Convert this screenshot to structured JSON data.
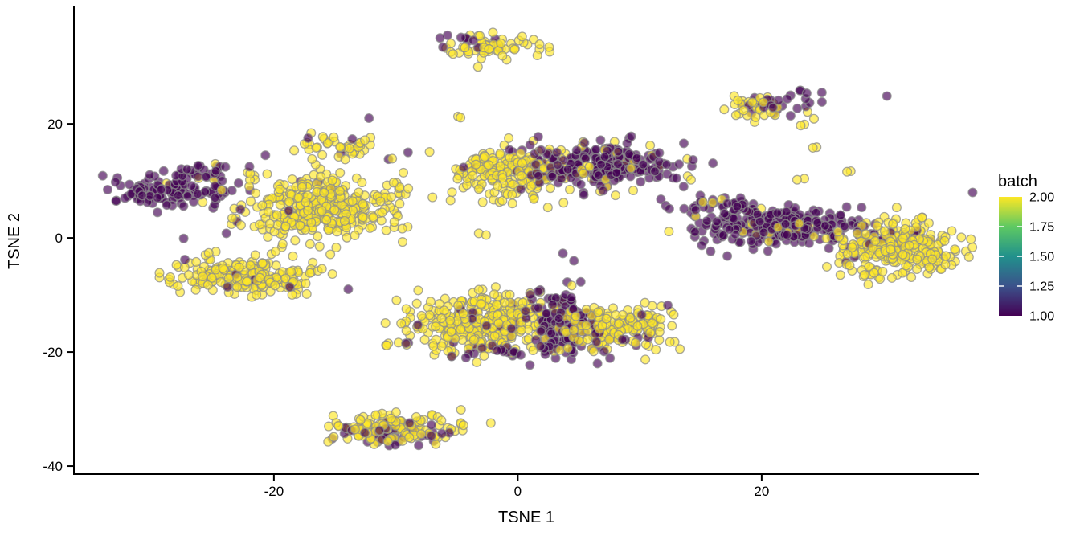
{
  "figure": {
    "background": "#ffffff",
    "axis_color": "#000000"
  },
  "chart_data": {
    "type": "scatter",
    "title": "",
    "xlabel": "TSNE 1",
    "ylabel": "TSNE 2",
    "xlim": [
      -36.4,
      37.8
    ],
    "ylim": [
      -41.4,
      40.3
    ],
    "x_ticks": [
      -20,
      0,
      20
    ],
    "y_ticks": [
      -40,
      -20,
      0,
      20
    ],
    "grid": false,
    "legend": {
      "title": "batch",
      "type": "colorbar",
      "position": "right",
      "tick_labels": [
        "2.00",
        "1.75",
        "1.50",
        "1.25",
        "1.00"
      ],
      "tick_values": [
        2.0,
        1.75,
        1.5,
        1.25,
        1.0
      ],
      "notch_values": [
        1.75,
        1.5,
        1.25
      ],
      "range": [
        1.0,
        2.0
      ],
      "gradient_bottom_to_top": [
        "#440154",
        "#3B528B",
        "#21918C",
        "#5EC962",
        "#FDE725"
      ]
    },
    "point_style": {
      "radius": 5.4,
      "fill_opacity": 0.65,
      "stroke": "#8C8C8C",
      "stroke_opacity": 0.75,
      "stroke_width": 1.3
    },
    "batch_colors": {
      "1": "#440154",
      "2": "#FDE725"
    },
    "clusters": [
      {
        "name": "top-center",
        "cx": -2.0,
        "cy": 33.6,
        "sx": 1.9,
        "sy": 1.1,
        "n": 70,
        "frac_batch2": 0.87,
        "purple_offset": [
          -1.3,
          0.9
        ]
      },
      {
        "name": "top-right",
        "cx": 20.3,
        "cy": 22.8,
        "sx": 2.0,
        "sy": 1.1,
        "n": 60,
        "frac_batch2": 0.62,
        "purple_offset": [
          1.4,
          0.9
        ]
      },
      {
        "name": "left-purple",
        "cx": -29.2,
        "cy": 8.2,
        "sx": 2.6,
        "sy": 1.4,
        "n": 110,
        "frac_batch2": 0.03,
        "purple_offset": [
          0,
          0
        ]
      },
      {
        "name": "left-purple-arm",
        "cx": -25.8,
        "cy": 11.0,
        "sx": 1.5,
        "sy": 0.9,
        "n": 30,
        "frac_batch2": 0.05,
        "purple_offset": [
          0,
          0
        ]
      },
      {
        "name": "big-yellow",
        "cx": -16.2,
        "cy": 5.0,
        "sx": 3.2,
        "sy": 2.9,
        "n": 360,
        "frac_batch2": 0.985,
        "purple_offset": [
          -2.5,
          2.0
        ]
      },
      {
        "name": "big-yellow-top",
        "cx": -14.3,
        "cy": 16.2,
        "sx": 1.7,
        "sy": 1.0,
        "n": 40,
        "frac_batch2": 0.96,
        "purple_offset": [
          0,
          0
        ]
      },
      {
        "name": "lower-left-yellow",
        "cx": -22.2,
        "cy": -6.6,
        "sx": 3.0,
        "sy": 1.6,
        "n": 210,
        "frac_batch2": 0.975,
        "purple_offset": [
          -1.5,
          -1.0
        ]
      },
      {
        "name": "center-yellow",
        "cx": -0.6,
        "cy": 11.4,
        "sx": 2.5,
        "sy": 2.2,
        "n": 230,
        "frac_batch2": 0.93,
        "purple_offset": [
          1.5,
          1.5
        ]
      },
      {
        "name": "center-purple",
        "cx": 7.0,
        "cy": 12.6,
        "sx": 2.7,
        "sy": 1.8,
        "n": 230,
        "frac_batch2": 0.13,
        "purple_offset": [
          0.3,
          0.3
        ]
      },
      {
        "name": "right-purple",
        "cx": 21.6,
        "cy": 2.0,
        "sx": 3.4,
        "sy": 1.7,
        "n": 260,
        "frac_batch2": 0.07,
        "purple_offset": [
          0,
          0
        ]
      },
      {
        "name": "right-purple-arm",
        "cx": 16.0,
        "cy": 5.5,
        "sx": 1.7,
        "sy": 1.0,
        "n": 40,
        "frac_batch2": 0.06,
        "purple_offset": [
          0,
          0
        ]
      },
      {
        "name": "right-yellow",
        "cx": 31.2,
        "cy": -2.2,
        "sx": 2.5,
        "sy": 2.4,
        "n": 280,
        "frac_batch2": 0.94,
        "purple_offset": [
          -1.5,
          2.0
        ]
      },
      {
        "name": "bottom-center-yellow-left",
        "cx": -2.8,
        "cy": -14.6,
        "sx": 3.1,
        "sy": 2.3,
        "n": 320,
        "frac_batch2": 0.96,
        "purple_offset": [
          1.0,
          -2.0
        ]
      },
      {
        "name": "bottom-center-purple",
        "cx": 3.5,
        "cy": -14.8,
        "sx": 1.5,
        "sy": 2.9,
        "n": 150,
        "frac_batch2": 0.1,
        "purple_offset": [
          0,
          0
        ]
      },
      {
        "name": "bottom-center-yellow-right",
        "cx": 8.5,
        "cy": -15.6,
        "sx": 2.1,
        "sy": 1.9,
        "n": 150,
        "frac_batch2": 0.91,
        "purple_offset": [
          0.5,
          -1.5
        ]
      },
      {
        "name": "bottom-edge-purple",
        "cx": 1.0,
        "cy": -19.8,
        "sx": 3.4,
        "sy": 0.8,
        "n": 30,
        "frac_batch2": 0.15,
        "purple_offset": [
          0,
          0
        ]
      },
      {
        "name": "bottom-cluster",
        "cx": -9.9,
        "cy": -33.5,
        "sx": 2.8,
        "sy": 1.4,
        "n": 170,
        "frac_batch2": 0.72,
        "purple_offset": [
          -0.9,
          -0.9
        ]
      },
      {
        "name": "small-row",
        "cx": -10.3,
        "cy": -18.8,
        "sx": 0.9,
        "sy": 0.3,
        "n": 7,
        "frac_batch2": 0.6,
        "purple_offset": [
          0,
          0
        ]
      }
    ],
    "singles": [
      [
        -4.9,
        21.3,
        2
      ],
      [
        -4.7,
        21.1,
        2
      ],
      [
        23.5,
        19.9,
        2
      ],
      [
        23.2,
        19.7,
        2
      ],
      [
        24.5,
        15.9,
        2
      ],
      [
        24.2,
        15.8,
        2
      ],
      [
        27.3,
        11.7,
        2
      ],
      [
        27.0,
        11.6,
        2
      ],
      [
        -20.7,
        14.5,
        1
      ],
      [
        -17.2,
        17.5,
        1
      ],
      [
        -22.0,
        12.5,
        1
      ],
      [
        -22.9,
        9.6,
        1
      ],
      [
        -23.9,
        0.8,
        1
      ],
      [
        -27.4,
        -0.1,
        1
      ],
      [
        -27.3,
        -3.8,
        1
      ],
      [
        -23.8,
        -8.6,
        1
      ],
      [
        -18.7,
        -8.6,
        1
      ],
      [
        -13.9,
        -9.0,
        1
      ],
      [
        -10.6,
        13.8,
        1
      ],
      [
        -10.3,
        13.9,
        2
      ],
      [
        3.7,
        -2.7,
        1
      ],
      [
        4.6,
        -4.0,
        1
      ],
      [
        12.3,
        -11.8,
        1
      ],
      [
        -3.2,
        0.8,
        2
      ],
      [
        -2.6,
        0.5,
        2
      ],
      [
        14.2,
        10.2,
        2
      ],
      [
        13.6,
        9.0,
        1
      ],
      [
        23.5,
        10.4,
        2
      ],
      [
        22.9,
        10.2,
        2
      ],
      [
        -12.2,
        21.0,
        1
      ],
      [
        -9.0,
        15.0,
        1
      ],
      [
        9.3,
        17.8,
        1
      ],
      [
        11.6,
        14.9,
        1
      ]
    ]
  }
}
